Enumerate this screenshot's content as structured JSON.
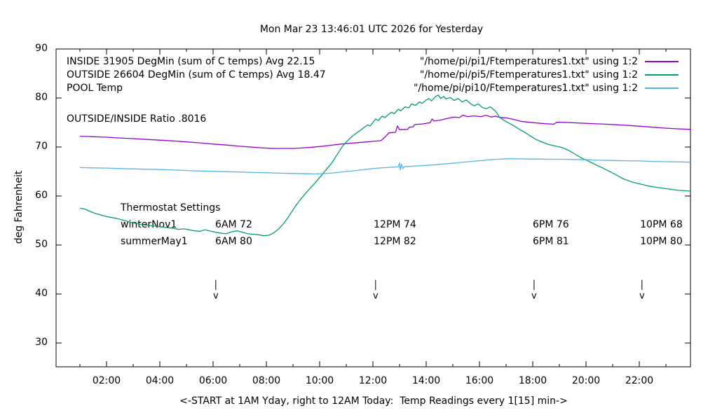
{
  "title": "Mon Mar 23 13:46:01 UTC 2026 for Yesterday",
  "y_axis": {
    "label": "deg Fahrenheit",
    "ticks": [
      30,
      40,
      50,
      60,
      70,
      80,
      90
    ],
    "min": 25,
    "max": 90
  },
  "x_axis": {
    "label": "<-START at 1AM Yday, right to 12AM Today:  Temp Readings every 1[15] min->",
    "tick_labels": [
      "02:00",
      "04:00",
      "06:00",
      "08:00",
      "10:00",
      "12:00",
      "14:00",
      "16:00",
      "18:00",
      "20:00",
      "22:00"
    ],
    "tick_hours": [
      2,
      4,
      6,
      8,
      10,
      12,
      14,
      16,
      18,
      20,
      22
    ],
    "minor_tick_hours": [
      1,
      3,
      5,
      7,
      9,
      11,
      13,
      15,
      17,
      19,
      21,
      23
    ],
    "min": 0,
    "max": 24
  },
  "legend": {
    "entries": [
      {
        "label": "INSIDE 31905 DegMin (sum of C temps) Avg 22.15",
        "file": "\"/home/pi/pi1/Ftemperatures1.txt\" using 1:2",
        "color": "#9400d3"
      },
      {
        "label": "OUTSIDE 26604 DegMin (sum of C temps) Avg 18.47",
        "file": "\"/home/pi/pi5/Ftemperatures1.txt\" using 1:2",
        "color": "#009e73"
      },
      {
        "label": "POOL Temp",
        "file": "\"/home/pi/pi10/Ftemperatures1.txt\" using 1:2",
        "color": "#56b4e9"
      }
    ]
  },
  "annotations": {
    "ratio": "OUTSIDE/INSIDE Ratio .8016",
    "thermostat": {
      "heading": "Thermostat Settings",
      "rows": [
        {
          "name": "winterNov1",
          "settings": [
            "6AM 72",
            "12PM 74",
            "6PM 76",
            "10PM 68"
          ]
        },
        {
          "name": "summerMay1",
          "settings": [
            "6AM 80",
            "12PM 82",
            "6PM 81",
            "10PM 80"
          ]
        }
      ],
      "column_hours": [
        6.08,
        12.03,
        18.0,
        22.03
      ]
    },
    "arrows": {
      "hours": [
        6.1,
        12.1,
        18.05,
        22.1
      ],
      "from_temp": 42.9,
      "to_temp": 40.8,
      "glyph": "v"
    }
  },
  "chart_data": {
    "type": "line",
    "title": "Mon Mar 23 13:46:01 UTC 2026 for Yesterday",
    "xlabel": "<-START at 1AM Yday, right to 12AM Today:  Temp Readings every 1[15] min->",
    "ylabel": "deg Fahrenheit",
    "xlim": [
      0,
      24
    ],
    "ylim": [
      25,
      90
    ],
    "grid": false,
    "legend_position": "top-inside",
    "x_units": "hours since midnight yesterday",
    "series": [
      {
        "name": "INSIDE",
        "color": "#9400d3",
        "points": [
          [
            1,
            72.2
          ],
          [
            1.5,
            72.1
          ],
          [
            2,
            72.0
          ],
          [
            2.5,
            71.85
          ],
          [
            3,
            71.7
          ],
          [
            3.5,
            71.55
          ],
          [
            4,
            71.4
          ],
          [
            4.5,
            71.25
          ],
          [
            5,
            71.05
          ],
          [
            5.5,
            70.85
          ],
          [
            6,
            70.6
          ],
          [
            6.5,
            70.4
          ],
          [
            7,
            70.15
          ],
          [
            7.5,
            69.95
          ],
          [
            7.8,
            69.85
          ],
          [
            8.1,
            69.75
          ],
          [
            8.4,
            69.7
          ],
          [
            8.7,
            69.72
          ],
          [
            9,
            69.7
          ],
          [
            9.3,
            69.8
          ],
          [
            9.6,
            69.9
          ],
          [
            10,
            70.1
          ],
          [
            10.4,
            70.35
          ],
          [
            10.8,
            70.6
          ],
          [
            11.2,
            70.8
          ],
          [
            11.6,
            70.95
          ],
          [
            12,
            71.15
          ],
          [
            12.3,
            71.3
          ],
          [
            12.45,
            72.0
          ],
          [
            12.6,
            72.9
          ],
          [
            12.85,
            73.0
          ],
          [
            12.92,
            74.3
          ],
          [
            13,
            73.55
          ],
          [
            13.3,
            73.6
          ],
          [
            13.37,
            74.05
          ],
          [
            13.5,
            74.1
          ],
          [
            13.58,
            74.6
          ],
          [
            13.85,
            74.7
          ],
          [
            14.15,
            74.95
          ],
          [
            14.22,
            75.7
          ],
          [
            14.3,
            75.3
          ],
          [
            14.55,
            75.5
          ],
          [
            14.8,
            75.85
          ],
          [
            15.05,
            76.1
          ],
          [
            15.25,
            76.0
          ],
          [
            15.38,
            76.5
          ],
          [
            15.55,
            76.2
          ],
          [
            15.8,
            76.35
          ],
          [
            16.05,
            76.2
          ],
          [
            16.25,
            76.45
          ],
          [
            16.45,
            76.1
          ],
          [
            16.6,
            76.3
          ],
          [
            16.75,
            76.05
          ],
          [
            17.05,
            75.9
          ],
          [
            17.3,
            75.6
          ],
          [
            17.55,
            75.25
          ],
          [
            17.85,
            75.05
          ],
          [
            18.15,
            74.9
          ],
          [
            18.5,
            74.75
          ],
          [
            18.8,
            74.65
          ],
          [
            18.9,
            75.05
          ],
          [
            19.3,
            75.0
          ],
          [
            19.7,
            74.9
          ],
          [
            20.1,
            74.8
          ],
          [
            20.6,
            74.7
          ],
          [
            21.1,
            74.55
          ],
          [
            21.6,
            74.4
          ],
          [
            22,
            74.25
          ],
          [
            22.5,
            74.05
          ],
          [
            23,
            73.85
          ],
          [
            23.5,
            73.7
          ],
          [
            23.92,
            73.6
          ]
        ]
      },
      {
        "name": "OUTSIDE",
        "color": "#009e73",
        "points": [
          [
            1,
            57.5
          ],
          [
            1.2,
            57.3
          ],
          [
            1.4,
            56.8
          ],
          [
            1.6,
            56.4
          ],
          [
            1.8,
            56.1
          ],
          [
            2,
            55.8
          ],
          [
            2.2,
            55.6
          ],
          [
            2.4,
            55.4
          ],
          [
            2.6,
            55.1
          ],
          [
            2.8,
            54.8
          ],
          [
            3,
            54.5
          ],
          [
            3.3,
            54.2
          ],
          [
            3.6,
            54.0
          ],
          [
            3.9,
            53.8
          ],
          [
            4.2,
            53.6
          ],
          [
            4.5,
            53.4
          ],
          [
            4.7,
            53.2
          ],
          [
            4.9,
            53.3
          ],
          [
            5.1,
            53.1
          ],
          [
            5.3,
            52.9
          ],
          [
            5.5,
            52.8
          ],
          [
            5.7,
            53.1
          ],
          [
            5.85,
            52.9
          ],
          [
            6.1,
            52.6
          ],
          [
            6.3,
            52.4
          ],
          [
            6.5,
            52.3
          ],
          [
            6.7,
            52.7
          ],
          [
            6.9,
            52.9
          ],
          [
            7.1,
            52.6
          ],
          [
            7.3,
            52.3
          ],
          [
            7.5,
            52.2
          ],
          [
            7.7,
            52.1
          ],
          [
            7.9,
            51.9
          ],
          [
            8.1,
            52.0
          ],
          [
            8.25,
            52.4
          ],
          [
            8.45,
            53.2
          ],
          [
            8.65,
            54.4
          ],
          [
            8.85,
            55.9
          ],
          [
            9.05,
            57.6
          ],
          [
            9.25,
            59.1
          ],
          [
            9.45,
            60.4
          ],
          [
            9.65,
            61.6
          ],
          [
            9.85,
            62.8
          ],
          [
            10.05,
            64.1
          ],
          [
            10.25,
            65.4
          ],
          [
            10.45,
            66.7
          ],
          [
            10.65,
            68.4
          ],
          [
            10.85,
            70.1
          ],
          [
            11.05,
            71.3
          ],
          [
            11.25,
            72.3
          ],
          [
            11.45,
            73.1
          ],
          [
            11.65,
            73.9
          ],
          [
            11.8,
            74.5
          ],
          [
            11.9,
            74.3
          ],
          [
            12,
            75.0
          ],
          [
            12.1,
            75.7
          ],
          [
            12.2,
            75.4
          ],
          [
            12.35,
            76.3
          ],
          [
            12.45,
            76.0
          ],
          [
            12.55,
            76.5
          ],
          [
            12.7,
            77.1
          ],
          [
            12.8,
            76.8
          ],
          [
            12.95,
            77.7
          ],
          [
            13.05,
            77.4
          ],
          [
            13.2,
            78.2
          ],
          [
            13.35,
            78.0
          ],
          [
            13.45,
            78.8
          ],
          [
            13.6,
            78.5
          ],
          [
            13.75,
            79.2
          ],
          [
            13.85,
            78.9
          ],
          [
            14,
            79.6
          ],
          [
            14.1,
            79.9
          ],
          [
            14.2,
            79.4
          ],
          [
            14.35,
            80.3
          ],
          [
            14.45,
            80.6
          ],
          [
            14.55,
            79.9
          ],
          [
            14.65,
            80.3
          ],
          [
            14.75,
            79.8
          ],
          [
            14.9,
            80.1
          ],
          [
            15.05,
            79.5
          ],
          [
            15.2,
            79.9
          ],
          [
            15.35,
            79.2
          ],
          [
            15.5,
            79.6
          ],
          [
            15.65,
            78.9
          ],
          [
            15.8,
            78.4
          ],
          [
            15.95,
            78.8
          ],
          [
            16.1,
            78.1
          ],
          [
            16.25,
            77.8
          ],
          [
            16.4,
            78.2
          ],
          [
            16.55,
            77.6
          ],
          [
            16.65,
            77.0
          ],
          [
            16.75,
            76.1
          ],
          [
            16.9,
            75.5
          ],
          [
            17.1,
            74.9
          ],
          [
            17.3,
            74.3
          ],
          [
            17.5,
            73.6
          ],
          [
            17.7,
            73.0
          ],
          [
            17.9,
            72.3
          ],
          [
            18.1,
            71.6
          ],
          [
            18.35,
            71.0
          ],
          [
            18.6,
            70.5
          ],
          [
            18.85,
            70.2
          ],
          [
            19.1,
            69.9
          ],
          [
            19.35,
            69.3
          ],
          [
            19.6,
            68.5
          ],
          [
            19.85,
            67.7
          ],
          [
            20.1,
            67.1
          ],
          [
            20.35,
            66.4
          ],
          [
            20.6,
            65.8
          ],
          [
            20.85,
            65.1
          ],
          [
            21.1,
            64.4
          ],
          [
            21.4,
            63.5
          ],
          [
            21.7,
            62.9
          ],
          [
            22,
            62.5
          ],
          [
            22.3,
            62.1
          ],
          [
            22.6,
            61.8
          ],
          [
            23,
            61.5
          ],
          [
            23.4,
            61.2
          ],
          [
            23.92,
            61.0
          ]
        ]
      },
      {
        "name": "POOL",
        "color": "#56b4e9",
        "points": [
          [
            1,
            65.8
          ],
          [
            1.5,
            65.75
          ],
          [
            2,
            65.7
          ],
          [
            2.5,
            65.6
          ],
          [
            3,
            65.55
          ],
          [
            3.5,
            65.45
          ],
          [
            4,
            65.4
          ],
          [
            4.5,
            65.3
          ],
          [
            5,
            65.2
          ],
          [
            5.5,
            65.1
          ],
          [
            6,
            65.05
          ],
          [
            6.5,
            64.95
          ],
          [
            7,
            64.9
          ],
          [
            7.5,
            64.8
          ],
          [
            8,
            64.75
          ],
          [
            8.5,
            64.65
          ],
          [
            9,
            64.6
          ],
          [
            9.5,
            64.55
          ],
          [
            9.8,
            64.5
          ],
          [
            10.1,
            64.55
          ],
          [
            10.4,
            64.65
          ],
          [
            10.7,
            64.8
          ],
          [
            11,
            65.0
          ],
          [
            11.3,
            65.15
          ],
          [
            11.6,
            65.35
          ],
          [
            11.9,
            65.55
          ],
          [
            12.2,
            65.7
          ],
          [
            12.5,
            65.8
          ],
          [
            12.8,
            65.9
          ],
          [
            12.95,
            65.95
          ],
          [
            13,
            66.7
          ],
          [
            13.03,
            65.3
          ],
          [
            13.07,
            66.5
          ],
          [
            13.12,
            65.6
          ],
          [
            13.18,
            66.0
          ],
          [
            13.4,
            66.05
          ],
          [
            13.7,
            66.15
          ],
          [
            14,
            66.25
          ],
          [
            14.4,
            66.4
          ],
          [
            14.8,
            66.6
          ],
          [
            15.2,
            66.8
          ],
          [
            15.6,
            67.0
          ],
          [
            16,
            67.2
          ],
          [
            16.4,
            67.4
          ],
          [
            16.7,
            67.5
          ],
          [
            17,
            67.6
          ],
          [
            17.4,
            67.6
          ],
          [
            17.8,
            67.55
          ],
          [
            18.2,
            67.55
          ],
          [
            18.6,
            67.5
          ],
          [
            19,
            67.5
          ],
          [
            19.5,
            67.45
          ],
          [
            20,
            67.4
          ],
          [
            20.5,
            67.3
          ],
          [
            21,
            67.25
          ],
          [
            21.5,
            67.2
          ],
          [
            22,
            67.15
          ],
          [
            22.5,
            67.05
          ],
          [
            23,
            67.0
          ],
          [
            23.5,
            66.95
          ],
          [
            23.92,
            66.9
          ]
        ]
      }
    ]
  }
}
